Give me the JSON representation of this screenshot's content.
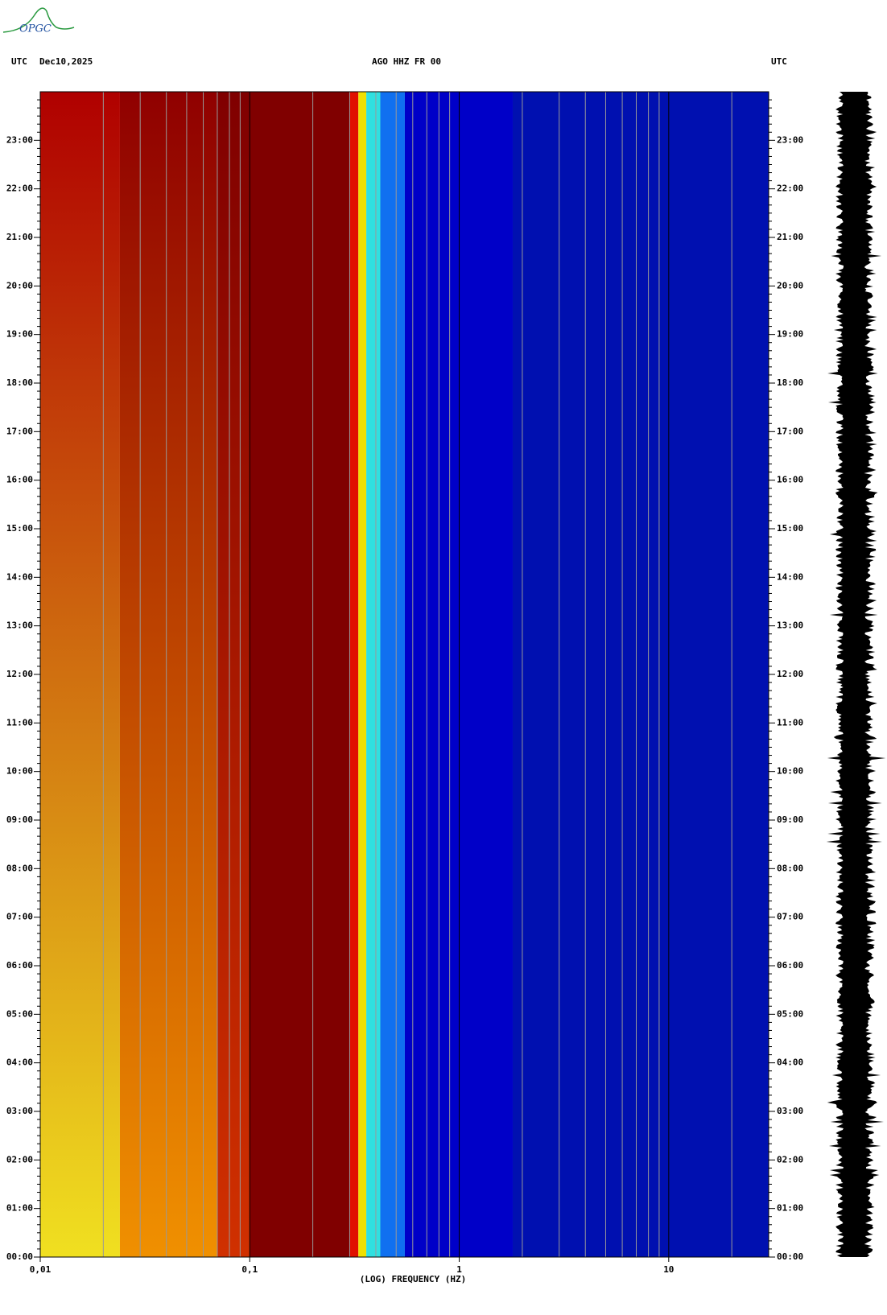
{
  "chart_data": {
    "type": "spectrogram",
    "logo": "OPGC",
    "timezone_left": "UTC",
    "date": "Dec10,2025",
    "title": "AGO HHZ FR 00",
    "timezone_right": "UTC",
    "xlabel": "(LOG) FREQUENCY (HZ)",
    "xscale": "log",
    "xlim": [
      0.01,
      30
    ],
    "xticks": [
      {
        "value": 0.01,
        "label": "0,01"
      },
      {
        "value": 0.1,
        "label": "0,1"
      },
      1,
      10
    ],
    "xgrid": [
      0.02,
      0.03,
      0.04,
      0.05,
      0.06,
      0.07,
      0.08,
      0.09,
      0.2,
      0.3,
      0.4,
      0.5,
      0.6,
      0.7,
      0.8,
      0.9,
      2,
      3,
      4,
      5,
      6,
      7,
      8,
      9,
      20
    ],
    "ylim": [
      0,
      24
    ],
    "yticks": [
      {
        "value": 0,
        "label": "00:00"
      },
      {
        "value": 1,
        "label": "01:00"
      },
      {
        "value": 2,
        "label": "02:00"
      },
      {
        "value": 3,
        "label": "03:00"
      },
      {
        "value": 4,
        "label": "04:00"
      },
      {
        "value": 5,
        "label": "05:00"
      },
      {
        "value": 6,
        "label": "06:00"
      },
      {
        "value": 7,
        "label": "07:00"
      },
      {
        "value": 8,
        "label": "08:00"
      },
      {
        "value": 9,
        "label": "09:00"
      },
      {
        "value": 10,
        "label": "10:00"
      },
      {
        "value": 11,
        "label": "11:00"
      },
      {
        "value": 12,
        "label": "12:00"
      },
      {
        "value": 13,
        "label": "13:00"
      },
      {
        "value": 14,
        "label": "14:00"
      },
      {
        "value": 15,
        "label": "15:00"
      },
      {
        "value": 16,
        "label": "16:00"
      },
      {
        "value": 17,
        "label": "17:00"
      },
      {
        "value": 18,
        "label": "18:00"
      },
      {
        "value": 19,
        "label": "19:00"
      },
      {
        "value": 20,
        "label": "20:00"
      },
      {
        "value": 21,
        "label": "21:00"
      },
      {
        "value": 22,
        "label": "22:00"
      },
      {
        "value": 23,
        "label": "23:00"
      }
    ],
    "bands": [
      {
        "from": 0.01,
        "to": 0.024,
        "color": "#b00000",
        "color_bottom": "#f0e020"
      },
      {
        "from": 0.024,
        "to": 0.07,
        "color": "#900000",
        "color_bottom": "#f09000"
      },
      {
        "from": 0.07,
        "to": 0.1,
        "color": "#800000",
        "color_bottom": "#d03000"
      },
      {
        "from": 0.1,
        "to": 0.3,
        "color": "#800000"
      },
      {
        "from": 0.3,
        "to": 0.33,
        "color": "#e01000"
      },
      {
        "from": 0.33,
        "to": 0.36,
        "color": "#f0e000"
      },
      {
        "from": 0.36,
        "to": 0.42,
        "color": "#30e0e0"
      },
      {
        "from": 0.42,
        "to": 0.55,
        "color": "#1070f0"
      },
      {
        "from": 0.55,
        "to": 1.8,
        "color": "#0000c8"
      },
      {
        "from": 1.8,
        "to": 30,
        "color": "#0010b0"
      }
    ]
  }
}
